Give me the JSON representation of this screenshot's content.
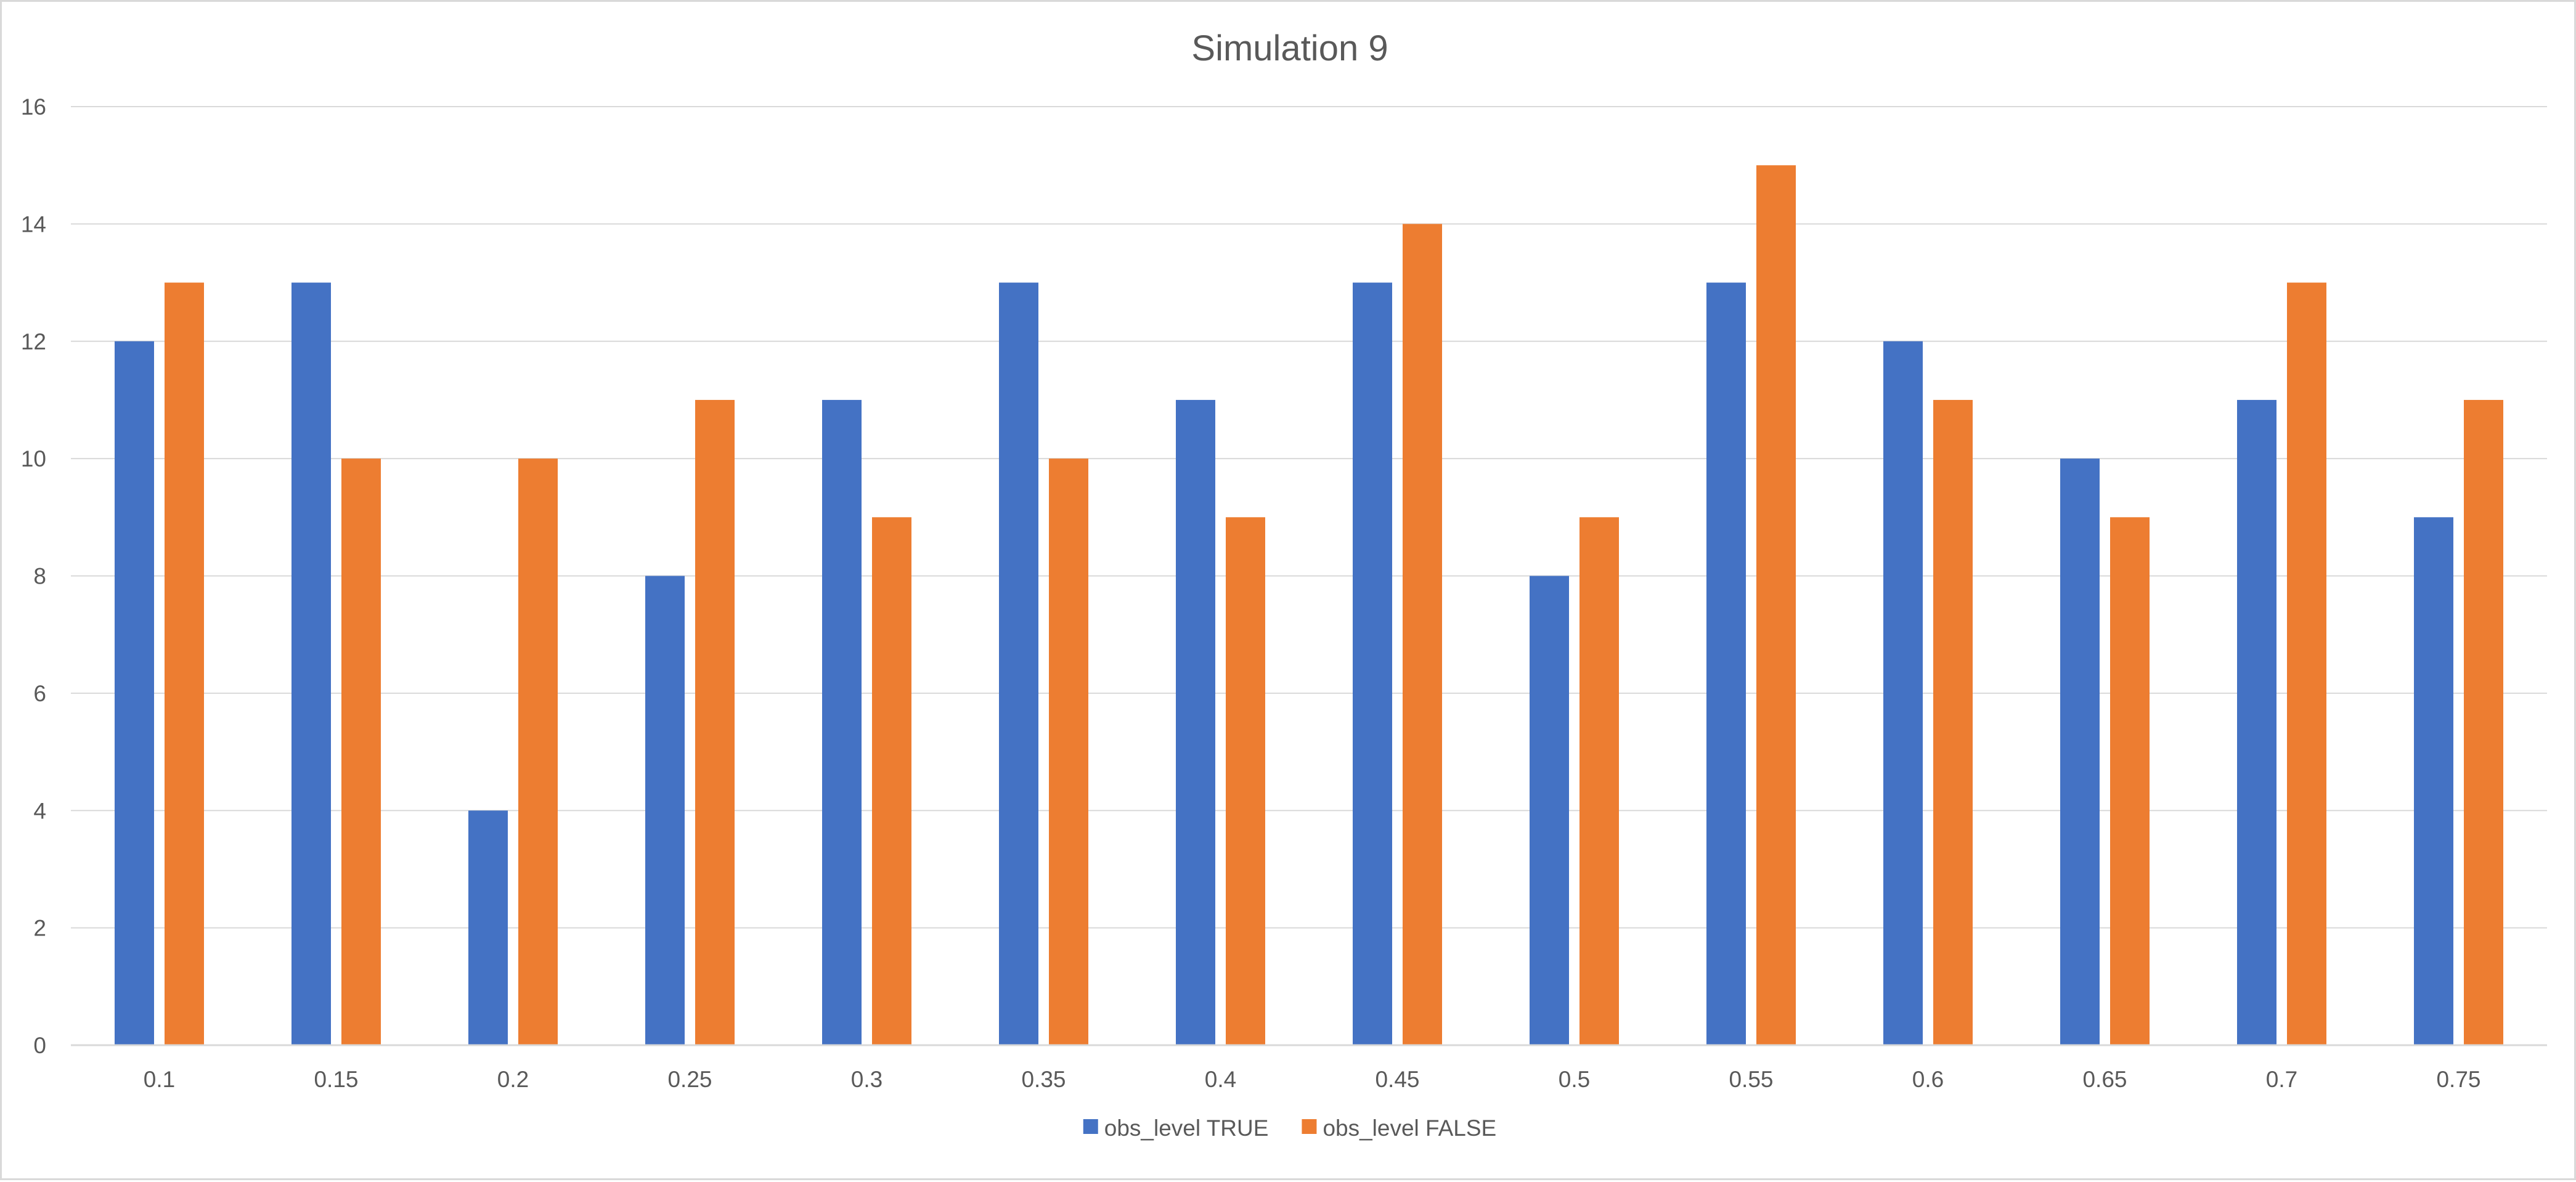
{
  "chart_data": {
    "type": "bar",
    "title": "Simulation 9",
    "xlabel": "",
    "ylabel": "",
    "categories": [
      "0.1",
      "0.15",
      "0.2",
      "0.25",
      "0.3",
      "0.35",
      "0.4",
      "0.45",
      "0.5",
      "0.55",
      "0.6",
      "0.65",
      "0.7",
      "0.75"
    ],
    "series": [
      {
        "name": "obs_level TRUE",
        "color": "#4472C4",
        "values": [
          12,
          13,
          4,
          8,
          11,
          13,
          11,
          13,
          8,
          13,
          12,
          10,
          11,
          9
        ]
      },
      {
        "name": "obs_level FALSE",
        "color": "#ED7D31",
        "values": [
          13,
          10,
          10,
          11,
          9,
          10,
          9,
          14,
          9,
          15,
          11,
          9,
          13,
          11
        ]
      }
    ],
    "ylim": [
      0,
      16
    ],
    "yticks": [
      0,
      2,
      4,
      6,
      8,
      10,
      12,
      14,
      16
    ],
    "grid": true,
    "gridline_color": "#d9d9d9",
    "legend_position": "bottom"
  }
}
